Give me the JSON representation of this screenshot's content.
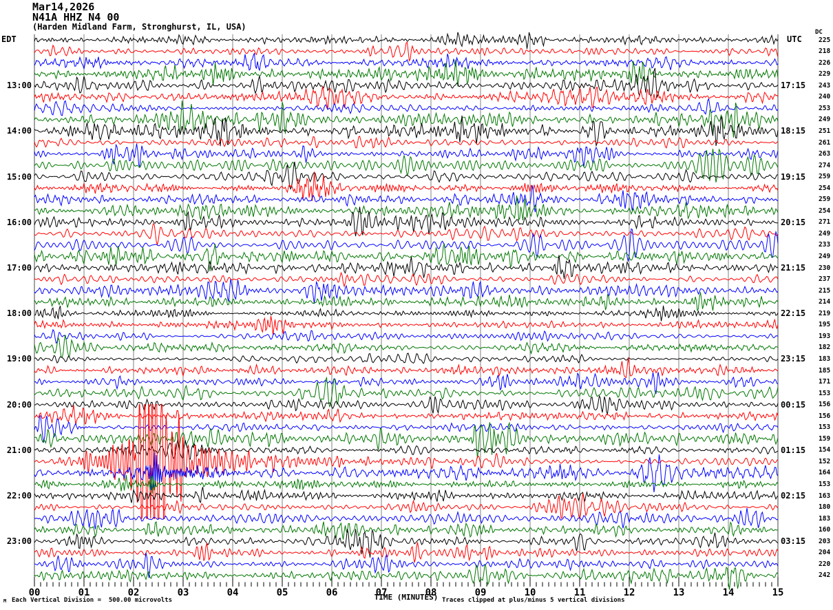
{
  "chart_data": {
    "type": "line",
    "chart_kind": "helicorder_seismogram",
    "title_lines": [
      "Mar14,2026",
      "N41A HHZ N4 00",
      "(Harden Midland Farm, Stronghurst, IL, USA)"
    ],
    "left_timezone": "EDT",
    "right_timezone": "UTC",
    "dc_header": "DC",
    "xlabel": "TIME (MINUTES)",
    "x_tick_labels": [
      "00",
      "01",
      "02",
      "03",
      "04",
      "05",
      "06",
      "07",
      "08",
      "09",
      "10",
      "11",
      "12",
      "13",
      "14",
      "15"
    ],
    "x_range_minutes": [
      0,
      15
    ],
    "minutes_per_line": 15,
    "minor_ticks_per_minute": 8,
    "rows": 48,
    "row_colors_cycle": [
      "#000000",
      "#ff0000",
      "#0000ff",
      "#007700"
    ],
    "grid_color": "#808080",
    "border_color": "#444444",
    "left_time_labels": [
      {
        "row": 4,
        "label": "13:00"
      },
      {
        "row": 8,
        "label": "14:00"
      },
      {
        "row": 12,
        "label": "15:00"
      },
      {
        "row": 16,
        "label": "16:00"
      },
      {
        "row": 20,
        "label": "17:00"
      },
      {
        "row": 24,
        "label": "18:00"
      },
      {
        "row": 28,
        "label": "19:00"
      },
      {
        "row": 32,
        "label": "20:00"
      },
      {
        "row": 36,
        "label": "21:00"
      },
      {
        "row": 40,
        "label": "22:00"
      },
      {
        "row": 44,
        "label": "23:00"
      }
    ],
    "right_time_labels": [
      {
        "row": 4,
        "label": "17:15"
      },
      {
        "row": 8,
        "label": "18:15"
      },
      {
        "row": 12,
        "label": "19:15"
      },
      {
        "row": 16,
        "label": "20:15"
      },
      {
        "row": 20,
        "label": "21:15"
      },
      {
        "row": 24,
        "label": "22:15"
      },
      {
        "row": 28,
        "label": "23:15"
      },
      {
        "row": 32,
        "label": "00:15"
      },
      {
        "row": 36,
        "label": "01:15"
      },
      {
        "row": 40,
        "label": "02:15"
      },
      {
        "row": 44,
        "label": "03:15"
      }
    ],
    "dc_values": [
      225,
      218,
      226,
      229,
      243,
      240,
      253,
      249,
      251,
      261,
      263,
      274,
      259,
      254,
      259,
      254,
      271,
      249,
      233,
      249,
      230,
      237,
      215,
      214,
      219,
      195,
      193,
      182,
      183,
      185,
      171,
      153,
      156,
      156,
      153,
      159,
      154,
      152,
      164,
      153,
      163,
      180,
      183,
      160,
      203,
      204,
      220,
      242
    ],
    "scale_note": "Each Vertical Division =  500.00 microvolts",
    "clip_note": "Traces clipped at plus/minus 5 vertical divisions",
    "corner_mark": "M",
    "clip_divisions": 5,
    "event": {
      "row_index": 37,
      "color": "#ff0000",
      "start_minute": 1.2,
      "peak_minute": 2.42,
      "end_minute": 4.5,
      "clipped": true,
      "description": "Large clipped seismic event on the line after 21:00 EDT (01:15 UTC group)"
    }
  }
}
